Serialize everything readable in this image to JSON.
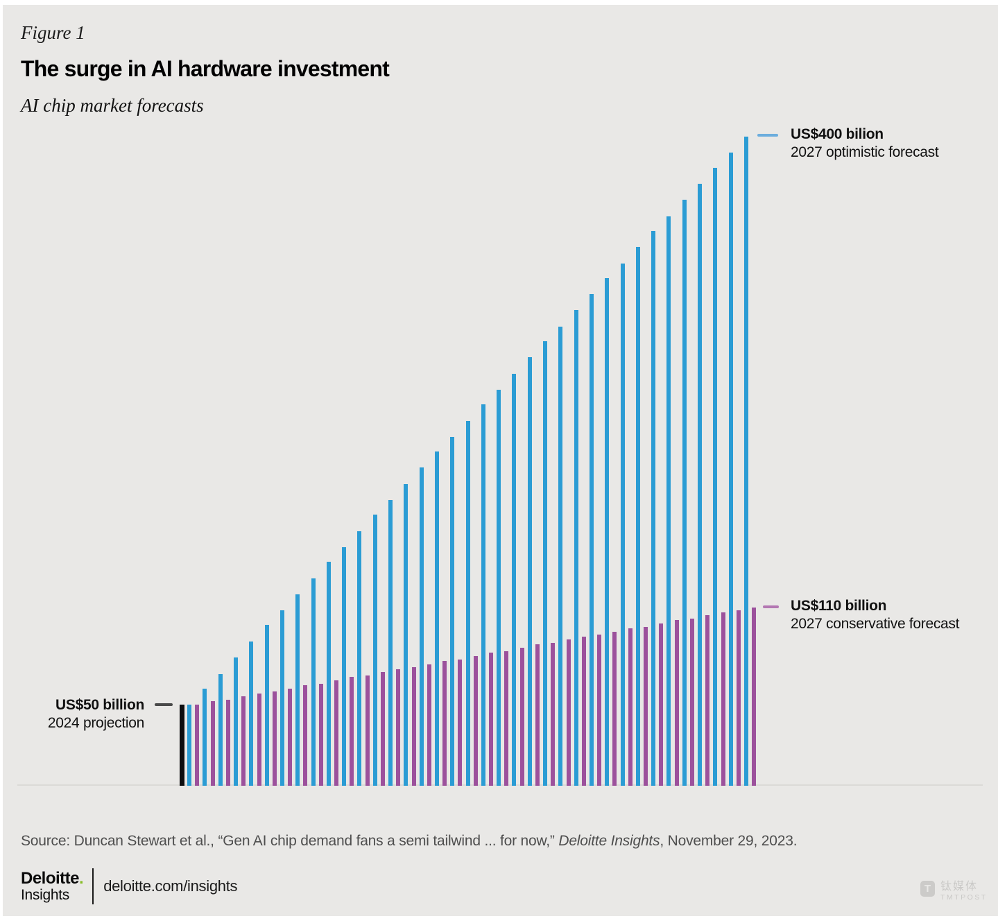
{
  "header": {
    "figure_label": "Figure 1",
    "title": "The surge in AI hardware investment",
    "subtitle": "AI chip market forecasts"
  },
  "annotations": {
    "optimistic": {
      "value": "US$400 bilion",
      "label": "2027 optimistic forecast"
    },
    "conservative": {
      "value": "US$110 billion",
      "label": "2027 conservative forecast"
    },
    "projection": {
      "value": "US$50 billion",
      "label": "2024 projection"
    }
  },
  "chart_data": {
    "type": "bar",
    "title": "The surge in AI hardware investment",
    "subtitle": "AI chip market forecasts",
    "unit": "US$ billion",
    "ylim": [
      0,
      400
    ],
    "grid": false,
    "legend_position": "annotated endpoints",
    "projection_2024": {
      "label": "US$50 billion",
      "sublabel": "2024 projection",
      "value": 50
    },
    "series": [
      {
        "name": "2027 optimistic forecast",
        "endpoint_label": "US$400 bilion",
        "color_key": "optimistic",
        "values": [
          50,
          60,
          69,
          79,
          89,
          99,
          108,
          118,
          128,
          138,
          147,
          157,
          167,
          176,
          186,
          196,
          206,
          215,
          225,
          235,
          244,
          254,
          264,
          274,
          283,
          293,
          303,
          313,
          322,
          332,
          342,
          351,
          361,
          371,
          381,
          390,
          400
        ]
      },
      {
        "name": "2027 conservative forecast",
        "endpoint_label": "US$110 billion",
        "color_key": "conservative",
        "values": [
          50,
          52,
          53,
          55,
          57,
          58,
          60,
          62,
          63,
          65,
          67,
          68,
          70,
          72,
          73,
          75,
          77,
          78,
          80,
          82,
          83,
          85,
          87,
          88,
          90,
          92,
          93,
          95,
          97,
          98,
          100,
          102,
          103,
          105,
          107,
          108,
          110
        ]
      }
    ],
    "colors": {
      "optimistic": "#2b9cd4",
      "conservative": "#9c519c",
      "projection": "#0d0d0f"
    }
  },
  "source": {
    "prefix": "Source: Duncan Stewart et al., “Gen AI chip demand fans a semi tailwind ... for now,” ",
    "italic": "Deloitte Insights",
    "suffix": ", November 29, 2023."
  },
  "footer": {
    "logo_name": "Deloitte",
    "logo_dot": ".",
    "logo_sub": "Insights",
    "url": "deloitte.com/insights"
  },
  "watermark": {
    "logo_letter": "T",
    "cn": "钛媒体",
    "en": "TMTPOST"
  }
}
